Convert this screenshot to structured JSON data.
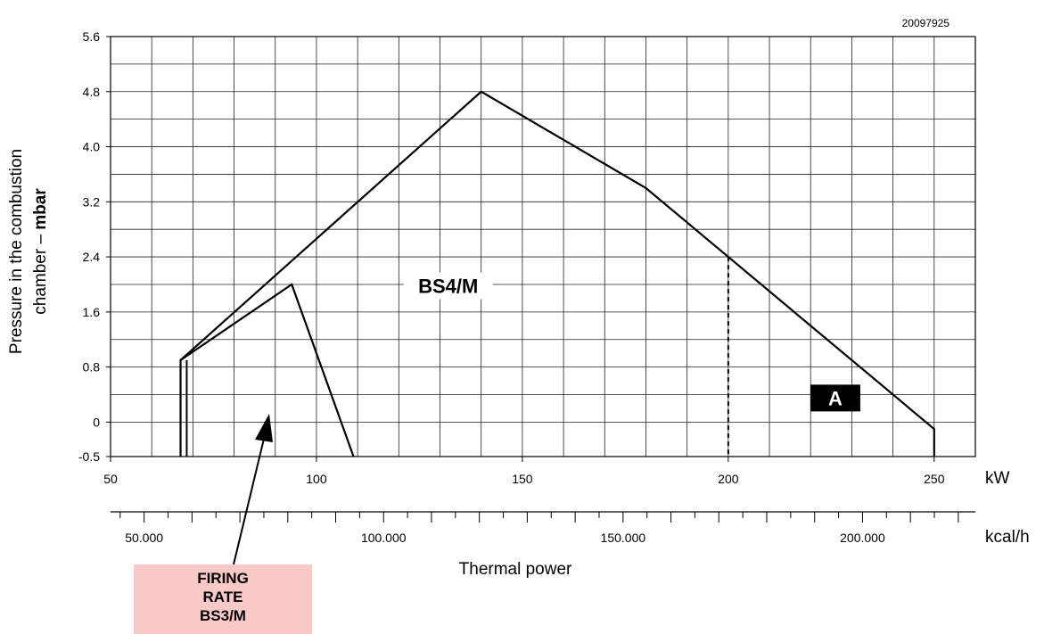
{
  "figure_code": "20097925",
  "firing_label": [
    "FIRING",
    "RATE",
    "BS3/M"
  ],
  "chart_data": {
    "type": "line",
    "title": "",
    "xlabel": "Thermal power",
    "x_unit": "kW",
    "x2_unit": "kcal/h",
    "ylabel_line1": "Pressure in the combustion",
    "ylabel_line2_prefix": "chamber – ",
    "ylabel_line2_bold": "mbar",
    "xlim": [
      50,
      260
    ],
    "ylim": [
      -0.5,
      5.6
    ],
    "x_ticks": [
      50,
      100,
      150,
      200,
      250
    ],
    "x_tick_labels": [
      "50",
      "100",
      "150",
      "200",
      "250"
    ],
    "y_ticks": [
      -0.5,
      0,
      0.8,
      1.6,
      2.4,
      3.2,
      4.0,
      4.8,
      5.6
    ],
    "y_tick_labels": [
      "-0.5",
      "0",
      "0.8",
      "1.6",
      "2.4",
      "3.2",
      "4.0",
      "4.8",
      "5.6"
    ],
    "x2_ticks": [
      50000,
      100000,
      150000,
      200000
    ],
    "x2_tick_labels": [
      "50.000",
      "100.000",
      "150.000",
      "200.000"
    ],
    "grid": true,
    "series": [
      {
        "name": "BS4/M",
        "x": [
          67,
          67,
          140,
          180,
          250,
          250
        ],
        "y": [
          -0.5,
          0.9,
          4.8,
          3.4,
          -0.1,
          -0.5
        ]
      },
      {
        "name": "BS3/M",
        "x": [
          67,
          94,
          109
        ],
        "y": [
          0.9,
          2.0,
          -0.5
        ]
      }
    ],
    "annotations": [
      {
        "text": "BS4/M",
        "x": 132,
        "y": 1.98
      },
      {
        "text": "A",
        "x": 226,
        "y": 0.35
      }
    ],
    "reference_line": {
      "x": 200,
      "y_top": 2.4
    }
  }
}
